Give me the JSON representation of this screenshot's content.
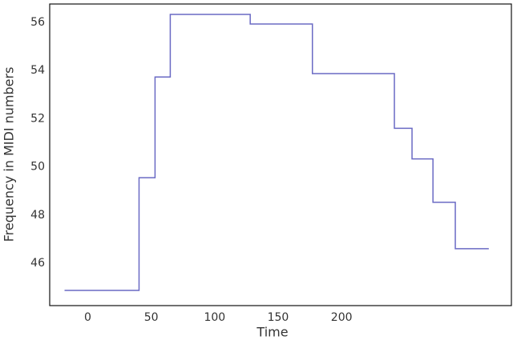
{
  "chart_data": {
    "type": "line",
    "xlabel": "Time",
    "ylabel": "Frequency in MIDI numbers",
    "series": [
      {
        "color": "#6a6ac4",
        "x": [
          -18.3,
          40.4,
          40.4,
          53,
          53,
          65,
          65,
          128,
          128,
          177,
          177,
          241.6,
          241.6,
          255.5,
          255.5,
          272,
          272,
          289.6,
          289.6,
          316
        ],
        "values": [
          44.87,
          44.87,
          49.55,
          49.55,
          53.73,
          53.73,
          56.33,
          56.33,
          55.93,
          55.93,
          53.87,
          53.87,
          51.6,
          51.6,
          50.33,
          50.33,
          48.53,
          48.53,
          46.6,
          46.6
        ]
      }
    ],
    "xlim": [
      -30,
      333.8
    ],
    "xticks": [
      0,
      50,
      100,
      150,
      200
    ],
    "ylim": [
      44.24,
      56.76
    ],
    "yticks": [
      46,
      48,
      50,
      52,
      54,
      56
    ],
    "grid": false
  }
}
